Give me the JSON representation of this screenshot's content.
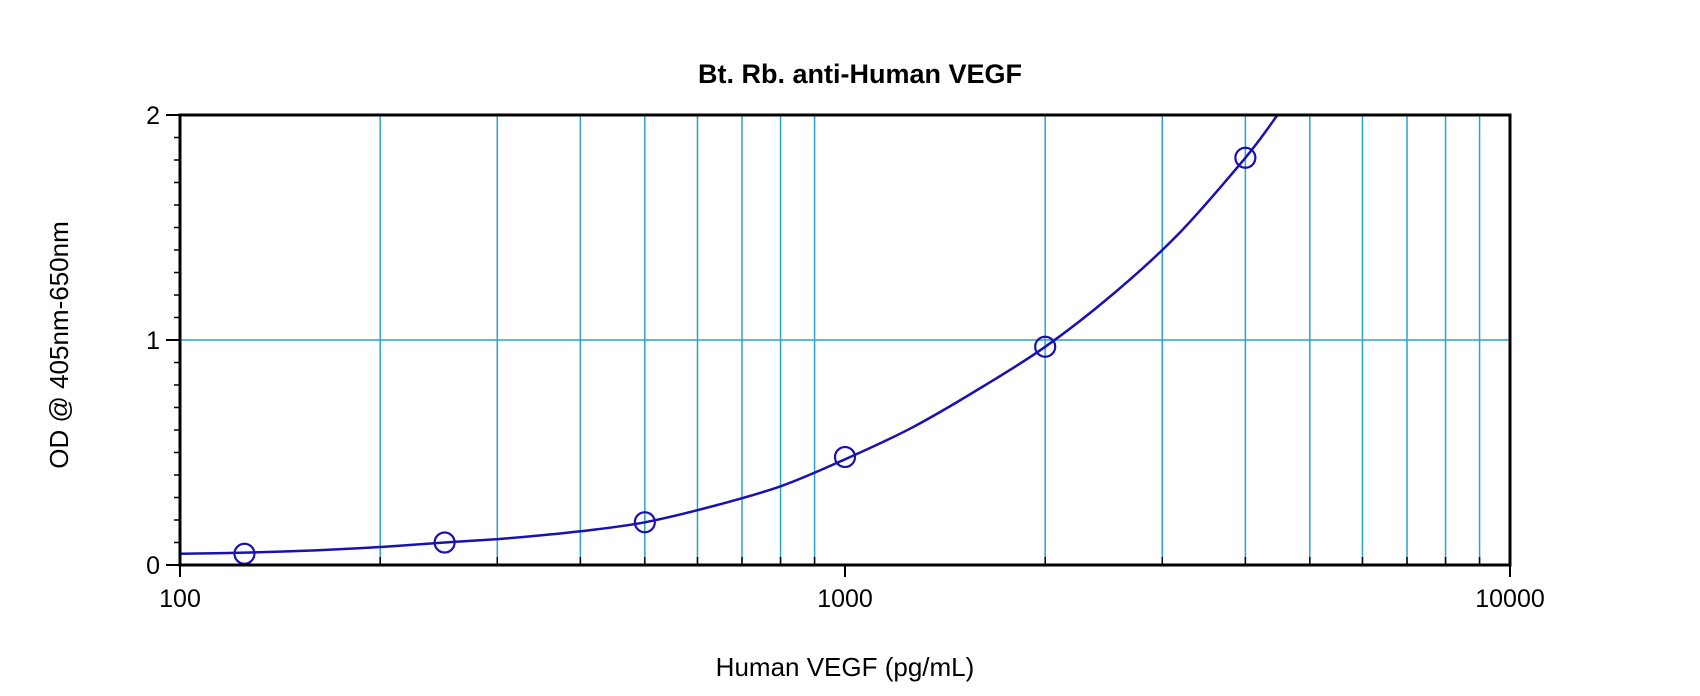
{
  "chart_data": {
    "type": "scatter",
    "title": "Bt. Rb. anti-Human VEGF",
    "xlabel": "Human VEGF (pg/mL)",
    "ylabel": "OD @ 405nm-650nm",
    "x_scale": "log",
    "xlim": [
      100,
      10000
    ],
    "ylim": [
      0,
      2
    ],
    "x_ticks": [
      "100",
      "1000",
      "10000"
    ],
    "y_ticks": [
      "0",
      "1",
      "2"
    ],
    "grid": true,
    "legend": "none",
    "colors": {
      "series": "#1a12b0",
      "grid": "#2aa3cc",
      "axes": "#000000"
    },
    "series": [
      {
        "points": [
          {
            "x": 125,
            "y": 0.05
          },
          {
            "x": 250,
            "y": 0.1
          },
          {
            "x": 500,
            "y": 0.19
          },
          {
            "x": 1000,
            "y": 0.48
          },
          {
            "x": 2000,
            "y": 0.97
          },
          {
            "x": 4000,
            "y": 1.81
          }
        ],
        "fit_curve": [
          {
            "x": 100,
            "y": 0.05
          },
          {
            "x": 125,
            "y": 0.055
          },
          {
            "x": 160,
            "y": 0.065
          },
          {
            "x": 200,
            "y": 0.08
          },
          {
            "x": 250,
            "y": 0.1
          },
          {
            "x": 315,
            "y": 0.12
          },
          {
            "x": 400,
            "y": 0.15
          },
          {
            "x": 500,
            "y": 0.19
          },
          {
            "x": 630,
            "y": 0.26
          },
          {
            "x": 800,
            "y": 0.35
          },
          {
            "x": 1000,
            "y": 0.47
          },
          {
            "x": 1260,
            "y": 0.61
          },
          {
            "x": 1585,
            "y": 0.78
          },
          {
            "x": 2000,
            "y": 0.97
          },
          {
            "x": 2520,
            "y": 1.2
          },
          {
            "x": 3170,
            "y": 1.47
          },
          {
            "x": 4000,
            "y": 1.81
          },
          {
            "x": 4470,
            "y": 2.0
          }
        ]
      }
    ]
  }
}
